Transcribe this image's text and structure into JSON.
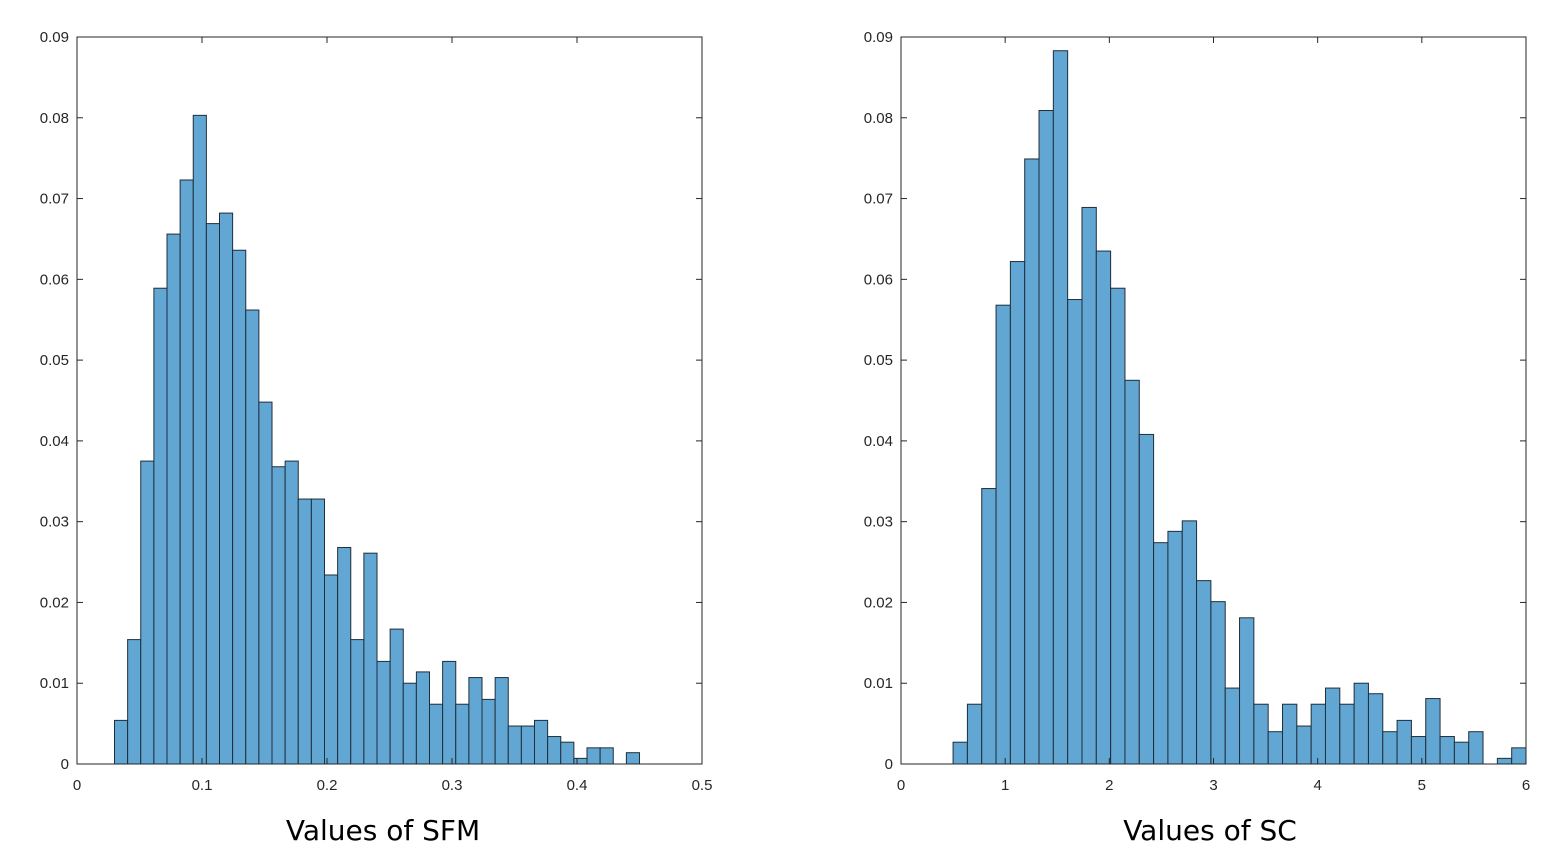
{
  "colors": {
    "bar_fill": "#62A6D4",
    "bar_edge": "#1f2f3a",
    "axis": "#262626"
  },
  "chart_data": [
    {
      "type": "bar",
      "title": "",
      "xlabel": "Values of SFM",
      "ylabel": "",
      "xlim": [
        0,
        0.5
      ],
      "ylim": [
        0,
        0.09
      ],
      "xticks": [
        0,
        0.1,
        0.2,
        0.3,
        0.4,
        0.5
      ],
      "xtick_labels": [
        "0",
        "0.1",
        "0.2",
        "0.3",
        "0.4",
        "0.5"
      ],
      "yticks": [
        0,
        0.01,
        0.02,
        0.03,
        0.04,
        0.05,
        0.06,
        0.07,
        0.08,
        0.09
      ],
      "ytick_labels": [
        "0",
        "0.01",
        "0.02",
        "0.03",
        "0.04",
        "0.05",
        "0.06",
        "0.07",
        "0.08",
        "0.09"
      ],
      "bin_start": 0.03,
      "bin_width": 0.0105,
      "values": [
        0.0054,
        0.0154,
        0.0375,
        0.0589,
        0.0656,
        0.0723,
        0.0803,
        0.0669,
        0.0682,
        0.0636,
        0.0562,
        0.0448,
        0.0368,
        0.0375,
        0.0328,
        0.0328,
        0.0234,
        0.0268,
        0.0154,
        0.0261,
        0.0127,
        0.0167,
        0.01,
        0.0114,
        0.0074,
        0.0127,
        0.0074,
        0.0107,
        0.008,
        0.0107,
        0.0047,
        0.0047,
        0.0054,
        0.0034,
        0.0027,
        0.0007,
        0.002,
        0.002,
        0.0,
        0.0014
      ]
    },
    {
      "type": "bar",
      "title": "",
      "xlabel": "Values of SC",
      "ylabel": "",
      "xlim": [
        0,
        6
      ],
      "ylim": [
        0,
        0.09
      ],
      "xticks": [
        0,
        1,
        2,
        3,
        4,
        5,
        6
      ],
      "xtick_labels": [
        "0",
        "1",
        "2",
        "3",
        "4",
        "5",
        "6"
      ],
      "yticks": [
        0,
        0.01,
        0.02,
        0.03,
        0.04,
        0.05,
        0.06,
        0.07,
        0.08,
        0.09
      ],
      "ytick_labels": [
        "0",
        "0.01",
        "0.02",
        "0.03",
        "0.04",
        "0.05",
        "0.06",
        "0.07",
        "0.08",
        "0.09"
      ],
      "bin_start": 0.5,
      "bin_width": 0.1375,
      "values": [
        0.0027,
        0.0074,
        0.0341,
        0.0568,
        0.0622,
        0.0749,
        0.0809,
        0.0883,
        0.0575,
        0.0689,
        0.0635,
        0.0589,
        0.0475,
        0.0408,
        0.0274,
        0.0288,
        0.0301,
        0.0227,
        0.0201,
        0.0094,
        0.0181,
        0.0074,
        0.004,
        0.0074,
        0.0047,
        0.0074,
        0.0094,
        0.0074,
        0.01,
        0.0087,
        0.004,
        0.0054,
        0.0034,
        0.0081,
        0.0034,
        0.0027,
        0.004,
        0.0,
        0.0007,
        0.002
      ]
    }
  ]
}
